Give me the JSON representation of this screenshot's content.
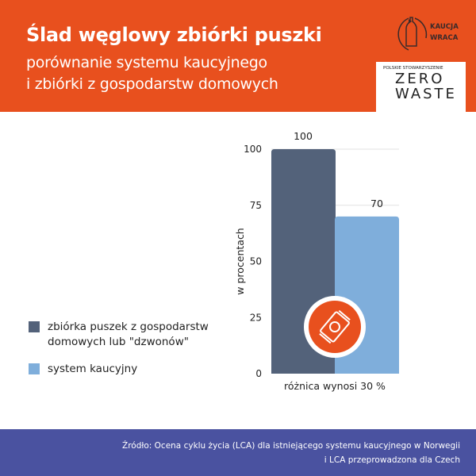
{
  "header": {
    "title": "Ślad węglowy zbiórki puszki",
    "subtitle_line1": "porównanie systemu kaucyjnego",
    "subtitle_line2": "i zbiórki z gospodarstw domowych",
    "logo1": {
      "line1": "KAUCJA",
      "line2": "WRACA",
      "icon": "bottle-recycle-icon"
    },
    "logo2": {
      "small": "POLSKIE STOWARZYSZENIE",
      "line1": "ZERO",
      "line2": "WASTE"
    }
  },
  "colors": {
    "accent": "#E8501E",
    "footer": "#4A52A0",
    "bar_dark": "#53627A",
    "bar_light": "#7FAEDB"
  },
  "chart_data": {
    "type": "bar",
    "categories": [
      "zbiórka puszek z gospodarstw domowych lub \"dzwonów\"",
      "system kaucyjny"
    ],
    "values": [
      100,
      70
    ],
    "value_labels": [
      "100",
      "70"
    ],
    "ylabel": "w procentach",
    "xlabel": "różnica wynosi 30 %",
    "ylim": [
      0,
      100
    ],
    "yticks": [
      0,
      25,
      50,
      75,
      100
    ],
    "ytick_labels": [
      "0",
      "25",
      "50",
      "75",
      "100"
    ],
    "legend": [
      {
        "line1": "zbiórka puszek z gospodarstw",
        "line2": "domowych lub \"dzwonów\""
      },
      {
        "line1": "system kaucyjny"
      }
    ],
    "legend_placement": "left",
    "icon": "can-icon"
  },
  "footer": {
    "line1": "Źródło: Ocena cyklu życia (LCA) dla istniejącego systemu kaucyjnego w Norwegii",
    "line2": "i LCA przeprowadzona dla Czech"
  }
}
